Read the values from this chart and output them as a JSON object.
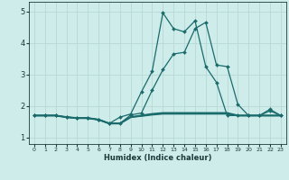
{
  "xlabel": "Humidex (Indice chaleur)",
  "xlim": [
    -0.5,
    23.5
  ],
  "ylim": [
    0.8,
    5.3
  ],
  "xticks": [
    0,
    1,
    2,
    3,
    4,
    5,
    6,
    7,
    8,
    9,
    10,
    11,
    12,
    13,
    14,
    15,
    16,
    17,
    18,
    19,
    20,
    21,
    22,
    23
  ],
  "yticks": [
    1,
    2,
    3,
    4,
    5
  ],
  "bg_color": "#ceecea",
  "grid_color": "#b8d8d5",
  "line_color": "#1a6b6b",
  "lines": [
    {
      "x": [
        0,
        1,
        2,
        3,
        4,
        5,
        6,
        7,
        8,
        9,
        10,
        11,
        12,
        13,
        14,
        15,
        16,
        17,
        18,
        19,
        20,
        21,
        22,
        23
      ],
      "y": [
        1.7,
        1.7,
        1.7,
        1.65,
        1.62,
        1.62,
        1.57,
        1.45,
        1.45,
        1.65,
        1.68,
        1.72,
        1.75,
        1.75,
        1.75,
        1.75,
        1.75,
        1.75,
        1.75,
        1.7,
        1.7,
        1.7,
        1.7,
        1.7
      ],
      "marker": false,
      "lw": 1.0
    },
    {
      "x": [
        0,
        1,
        2,
        3,
        4,
        5,
        6,
        7,
        8,
        9,
        10,
        11,
        12,
        13,
        14,
        15,
        16,
        17,
        18,
        19,
        20,
        21,
        22,
        23
      ],
      "y": [
        1.7,
        1.7,
        1.7,
        1.65,
        1.62,
        1.62,
        1.57,
        1.45,
        1.45,
        1.65,
        1.7,
        1.75,
        1.78,
        1.78,
        1.78,
        1.78,
        1.78,
        1.78,
        1.78,
        1.7,
        1.7,
        1.7,
        1.7,
        1.7
      ],
      "marker": false,
      "lw": 1.5
    },
    {
      "x": [
        0,
        1,
        2,
        3,
        4,
        5,
        6,
        7,
        8,
        9,
        10,
        11,
        12,
        13,
        14,
        15,
        16,
        17,
        18,
        19,
        20,
        21,
        22,
        23
      ],
      "y": [
        1.7,
        1.7,
        1.7,
        1.65,
        1.62,
        1.62,
        1.57,
        1.45,
        1.65,
        1.75,
        2.45,
        3.1,
        4.95,
        4.45,
        4.35,
        4.7,
        3.25,
        2.75,
        1.7,
        1.7,
        1.7,
        1.7,
        1.9,
        1.7
      ],
      "marker": true,
      "lw": 0.9
    },
    {
      "x": [
        0,
        1,
        2,
        3,
        4,
        5,
        6,
        7,
        8,
        9,
        10,
        11,
        12,
        13,
        14,
        15,
        16,
        17,
        18,
        19,
        20,
        21,
        22,
        23
      ],
      "y": [
        1.7,
        1.7,
        1.7,
        1.65,
        1.62,
        1.62,
        1.57,
        1.45,
        1.45,
        1.72,
        1.78,
        2.5,
        3.15,
        3.65,
        3.7,
        4.45,
        4.65,
        3.3,
        3.25,
        2.05,
        1.7,
        1.7,
        1.85,
        1.7
      ],
      "marker": true,
      "lw": 0.9
    }
  ]
}
